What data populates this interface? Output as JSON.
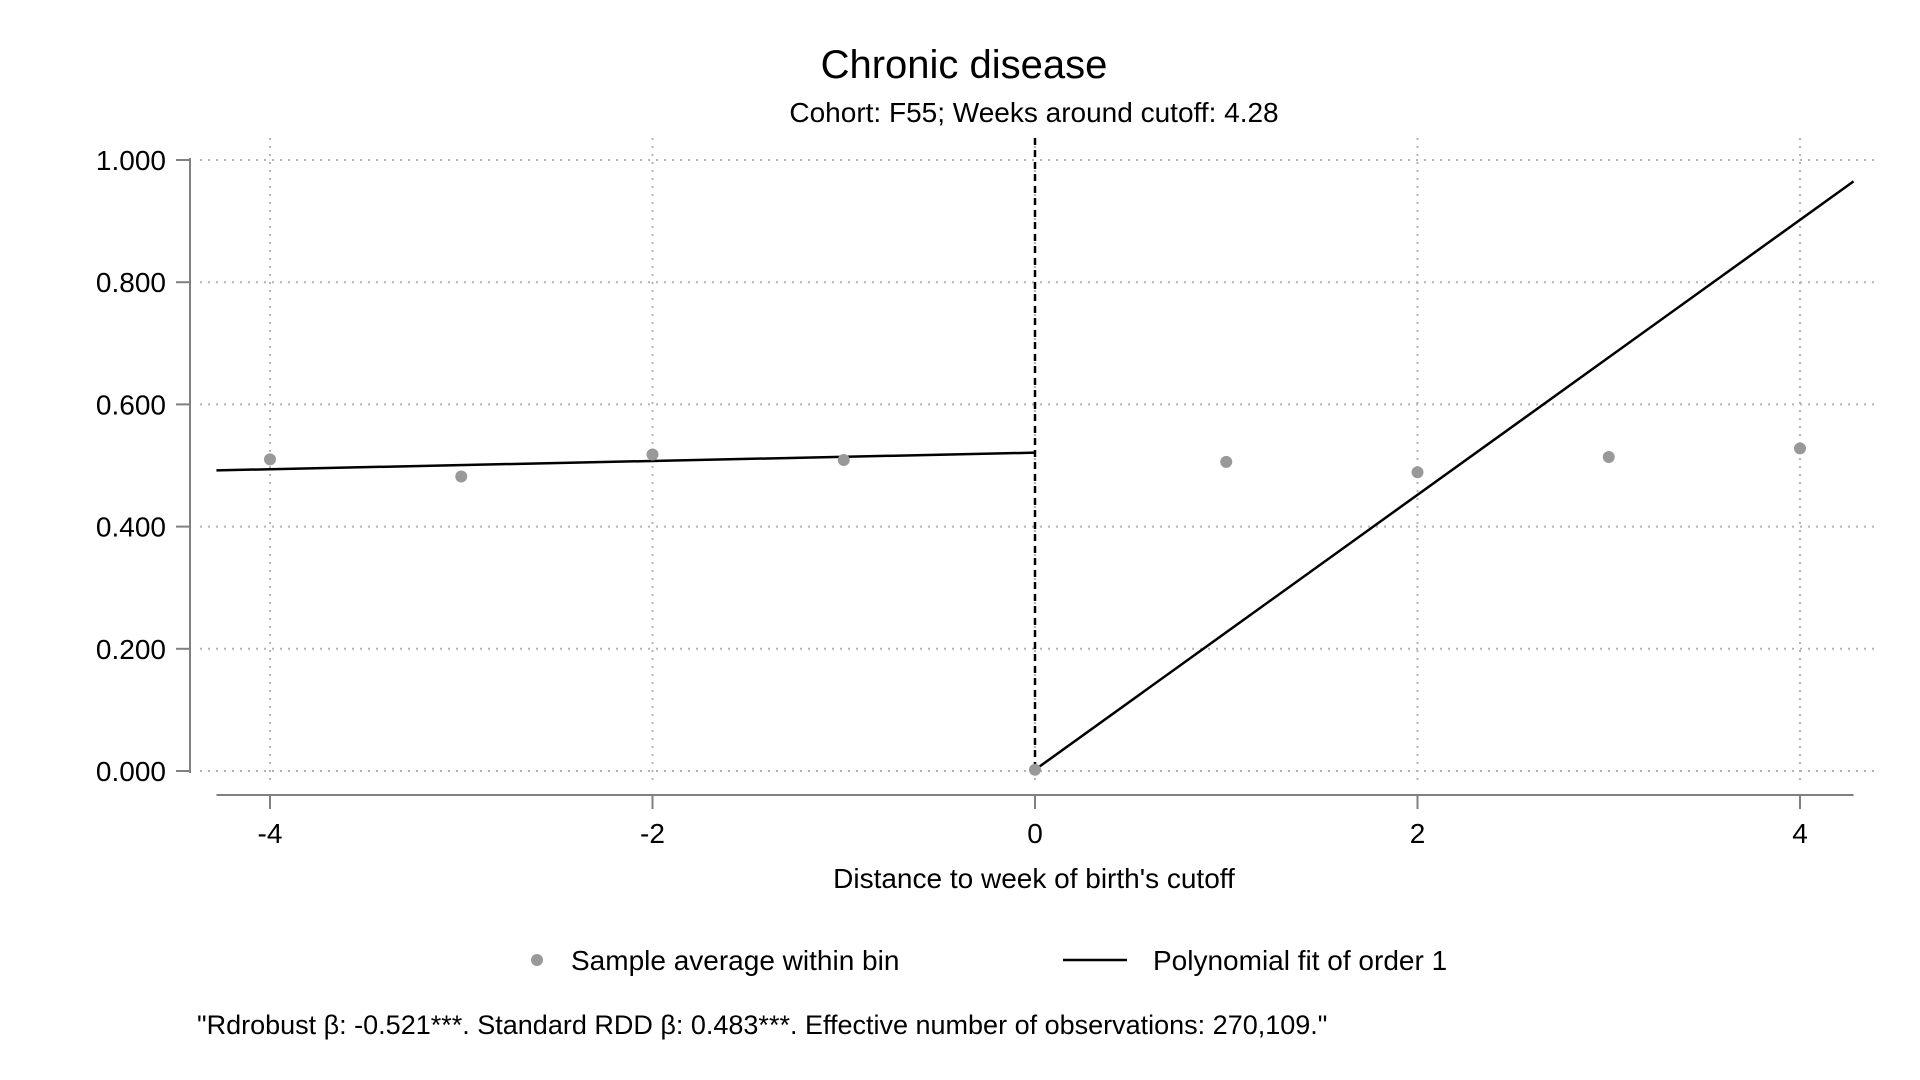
{
  "chart_data": {
    "type": "scatter",
    "title": "Chronic disease",
    "subtitle": "Cohort: F55; Weeks around cutoff: 4.28",
    "xlabel": "Distance to week of birth's cutoff",
    "ylabel": "",
    "xlim": [
      -4.28,
      4.28
    ],
    "ylim": [
      0,
      1
    ],
    "x_ticks": [
      -4,
      -2,
      0,
      2,
      4
    ],
    "x_tick_labels": [
      "-4",
      "-2",
      "0",
      "2",
      "4"
    ],
    "y_ticks": [
      0,
      0.2,
      0.4,
      0.6,
      0.8,
      1.0
    ],
    "y_tick_labels": [
      "0.000",
      "0.200",
      "0.400",
      "0.600",
      "0.800",
      "1.000"
    ],
    "grid": true,
    "cutoff": 0,
    "legend_position": "bottom",
    "series": [
      {
        "name": "Sample average within bin",
        "kind": "points",
        "color": "#999999",
        "points": [
          {
            "x": -4,
            "y": 0.51
          },
          {
            "x": -3,
            "y": 0.482
          },
          {
            "x": -2,
            "y": 0.518
          },
          {
            "x": -1,
            "y": 0.509
          },
          {
            "x": 0,
            "y": 0.002
          },
          {
            "x": 1,
            "y": 0.506
          },
          {
            "x": 2,
            "y": 0.489
          },
          {
            "x": 3,
            "y": 0.514
          },
          {
            "x": 4,
            "y": 0.528
          }
        ]
      },
      {
        "name": "Polynomial fit of order 1",
        "kind": "line",
        "color": "#000000",
        "segments": [
          [
            {
              "x": -4.28,
              "y": 0.492
            },
            {
              "x": 0,
              "y": 0.521
            }
          ],
          [
            {
              "x": 0,
              "y": 0.002
            },
            {
              "x": 4.28,
              "y": 0.965
            }
          ]
        ]
      }
    ],
    "note": "\"Rdrobust β: -0.521***. Standard RDD β: 0.483***. Effective number of observations: 270,109.\""
  }
}
